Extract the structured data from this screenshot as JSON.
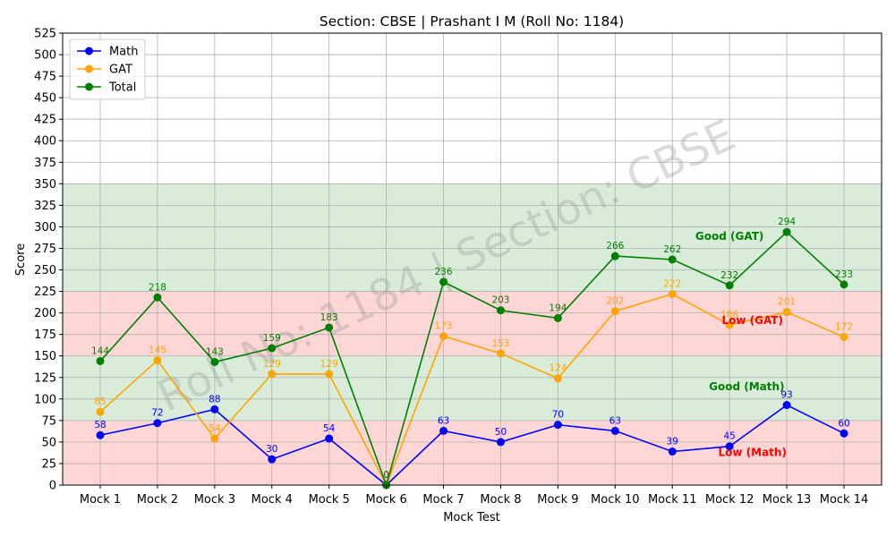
{
  "chart_data": {
    "type": "line",
    "title": "Section: CBSE | Prashant I M (Roll No: 1184)",
    "xlabel": "Mock Test",
    "ylabel": "Score",
    "categories": [
      "Mock 1",
      "Mock 2",
      "Mock 3",
      "Mock 4",
      "Mock 5",
      "Mock 6",
      "Mock 7",
      "Mock 8",
      "Mock 9",
      "Mock 10",
      "Mock 11",
      "Mock 12",
      "Mock 13",
      "Mock 14"
    ],
    "ylim": [
      0,
      525
    ],
    "yticks": [
      0,
      25,
      50,
      75,
      100,
      125,
      150,
      175,
      200,
      225,
      250,
      275,
      300,
      325,
      350,
      375,
      400,
      425,
      450,
      475,
      500,
      525
    ],
    "grid": true,
    "legend_position": "top-left",
    "series": [
      {
        "name": "Math",
        "color": "#0000ff",
        "values": [
          58,
          72,
          88,
          30,
          54,
          0,
          63,
          50,
          70,
          63,
          39,
          45,
          93,
          60
        ]
      },
      {
        "name": "GAT",
        "color": "#ffa500",
        "values": [
          85,
          145,
          54,
          129,
          129,
          0,
          173,
          153,
          124,
          202,
          222,
          186,
          201,
          172
        ]
      },
      {
        "name": "Total",
        "color": "#008000",
        "values": [
          144,
          218,
          143,
          159,
          183,
          0,
          236,
          203,
          194,
          266,
          262,
          232,
          294,
          233
        ]
      }
    ],
    "bands": [
      {
        "from": 0,
        "to": 75,
        "color": "#ffd6d6"
      },
      {
        "from": 75,
        "to": 150,
        "color": "#d9ecd9"
      },
      {
        "from": 150,
        "to": 225,
        "color": "#ffd6d6"
      },
      {
        "from": 225,
        "to": 350,
        "color": "#d9ecd9"
      }
    ],
    "annotations": [
      {
        "text": "Good (GAT)",
        "x": 11,
        "y": 285,
        "color": "#008000"
      },
      {
        "text": "Low (GAT)",
        "x": 11.4,
        "y": 187,
        "color": "#ff0000"
      },
      {
        "text": "Good (Math)",
        "x": 11.3,
        "y": 110,
        "color": "#008000"
      },
      {
        "text": "Low (Math)",
        "x": 11.4,
        "y": 34,
        "color": "#ff0000"
      }
    ],
    "watermark": "Roll No: 1184 | Section: CBSE"
  }
}
